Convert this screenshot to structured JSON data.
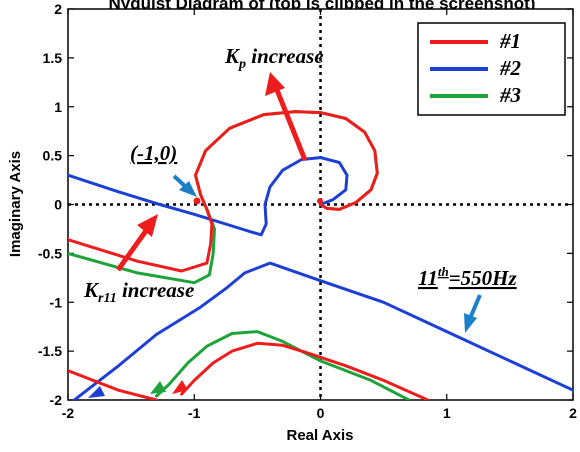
{
  "chart_data": {
    "type": "line",
    "title": "Nyquist diagram of (top is clipped in the screenshot)",
    "xlabel": "Real Axis",
    "ylabel": "Imaginary Axis",
    "xlim": [
      -2,
      2
    ],
    "ylim": [
      -2,
      2
    ],
    "xticks": [
      "-2",
      "-1",
      "0",
      "1",
      "2"
    ],
    "yticks": [
      "2",
      "1.5",
      "1",
      "0.5",
      "0",
      "-0.5",
      "-1",
      "-1.5",
      "-2"
    ],
    "grid": false,
    "legend_position": "top-right",
    "series": [
      {
        "name": "#1",
        "color": "#ee1c1c",
        "segments": [
          [
            [
              0,
              0
            ],
            [
              0.05,
              -0.04
            ],
            [
              0.15,
              -0.05
            ],
            [
              0.28,
              0.02
            ],
            [
              0.4,
              0.15
            ],
            [
              0.45,
              0.32
            ],
            [
              0.43,
              0.55
            ],
            [
              0.35,
              0.74
            ],
            [
              0.2,
              0.88
            ],
            [
              0.0,
              0.94
            ],
            [
              -0.2,
              0.95
            ],
            [
              -0.45,
              0.92
            ],
            [
              -0.72,
              0.78
            ],
            [
              -0.91,
              0.55
            ],
            [
              -0.99,
              0.3
            ],
            [
              -0.95,
              0.1
            ],
            [
              -0.9,
              -0.05
            ],
            [
              -0.86,
              -0.2
            ],
            [
              -0.87,
              -0.4
            ],
            [
              -0.9,
              -0.6
            ],
            [
              -1.1,
              -0.68
            ],
            [
              -1.45,
              -0.58
            ],
            [
              -2.0,
              -0.36
            ]
          ],
          [
            [
              0.85,
              -2.0
            ],
            [
              0.5,
              -1.8
            ],
            [
              0.2,
              -1.65
            ],
            [
              -0.1,
              -1.52
            ],
            [
              -0.3,
              -1.44
            ],
            [
              -0.5,
              -1.42
            ],
            [
              -0.7,
              -1.5
            ],
            [
              -0.85,
              -1.62
            ],
            [
              -1.0,
              -1.8
            ],
            [
              -1.1,
              -1.94
            ]
          ],
          [
            [
              -1.3,
              -2.0
            ],
            [
              -1.6,
              -1.9
            ],
            [
              -2.0,
              -1.7
            ]
          ]
        ]
      },
      {
        "name": "#2",
        "color": "#1c3fd6",
        "segments": [
          [
            [
              0,
              0
            ],
            [
              0.1,
              0.05
            ],
            [
              0.2,
              0.15
            ],
            [
              0.21,
              0.3
            ],
            [
              0.15,
              0.43
            ],
            [
              0.0,
              0.48
            ],
            [
              -0.15,
              0.46
            ],
            [
              -0.3,
              0.35
            ],
            [
              -0.4,
              0.18
            ],
            [
              -0.44,
              0.0
            ],
            [
              -0.43,
              -0.2
            ],
            [
              -0.47,
              -0.31
            ],
            [
              -0.55,
              -0.28
            ],
            [
              -0.7,
              -0.22
            ],
            [
              -1.0,
              -0.1
            ],
            [
              -1.3,
              0.01
            ],
            [
              -1.6,
              0.13
            ],
            [
              -2.0,
              0.3
            ]
          ],
          [
            [
              2.0,
              -1.9
            ],
            [
              1.5,
              -1.6
            ],
            [
              1.0,
              -1.3
            ],
            [
              0.5,
              -1.0
            ],
            [
              0.0,
              -0.78
            ],
            [
              -0.4,
              -0.6
            ],
            [
              -0.6,
              -0.7
            ],
            [
              -0.75,
              -0.86
            ],
            [
              -0.95,
              -1.05
            ],
            [
              -1.3,
              -1.33
            ],
            [
              -1.6,
              -1.65
            ],
            [
              -1.95,
              -2.0
            ]
          ]
        ]
      },
      {
        "name": "#3",
        "color": "#1da33a",
        "segments": [
          [
            [
              0,
              0
            ],
            [
              0.05,
              -0.04
            ],
            [
              0.15,
              -0.05
            ],
            [
              0.28,
              0.02
            ],
            [
              0.4,
              0.15
            ],
            [
              0.45,
              0.32
            ],
            [
              0.43,
              0.55
            ],
            [
              0.35,
              0.74
            ],
            [
              0.2,
              0.88
            ],
            [
              0.0,
              0.94
            ],
            [
              -0.2,
              0.95
            ],
            [
              -0.45,
              0.92
            ],
            [
              -0.72,
              0.78
            ],
            [
              -0.91,
              0.55
            ],
            [
              -0.99,
              0.3
            ],
            [
              -0.95,
              0.1
            ],
            [
              -0.9,
              -0.05
            ],
            [
              -0.84,
              -0.25
            ],
            [
              -0.85,
              -0.5
            ],
            [
              -0.88,
              -0.72
            ],
            [
              -1.0,
              -0.8
            ],
            [
              -1.45,
              -0.7
            ],
            [
              -2.0,
              -0.5
            ]
          ],
          [
            [
              0.7,
              -2.0
            ],
            [
              0.4,
              -1.8
            ],
            [
              0.0,
              -1.6
            ],
            [
              -0.3,
              -1.4
            ],
            [
              -0.5,
              -1.3
            ],
            [
              -0.7,
              -1.32
            ],
            [
              -0.9,
              -1.45
            ],
            [
              -1.05,
              -1.62
            ],
            [
              -1.2,
              -1.84
            ],
            [
              -1.3,
              -1.96
            ]
          ]
        ]
      }
    ],
    "annotations": [
      {
        "text": "K_p increase"
      },
      {
        "text": "(-1,0)"
      },
      {
        "text": "K_r11 increase"
      },
      {
        "text": "11^th=550Hz"
      }
    ]
  },
  "labels": {
    "title": "Nyquist Diagram of (top is clipped in the screenshot)",
    "kp_main": "K",
    "kp_sub": "p",
    "kp_rest": " increase",
    "minus_one": "(-1,0)",
    "kr_main": "K",
    "kr_sub": "r11",
    "kr_rest": " increase",
    "eleventh_main": "11",
    "eleventh_sup": "th",
    "eleventh_rest": "=550Hz",
    "legend_1": "#1",
    "legend_2": "#2",
    "legend_3": "#3"
  }
}
